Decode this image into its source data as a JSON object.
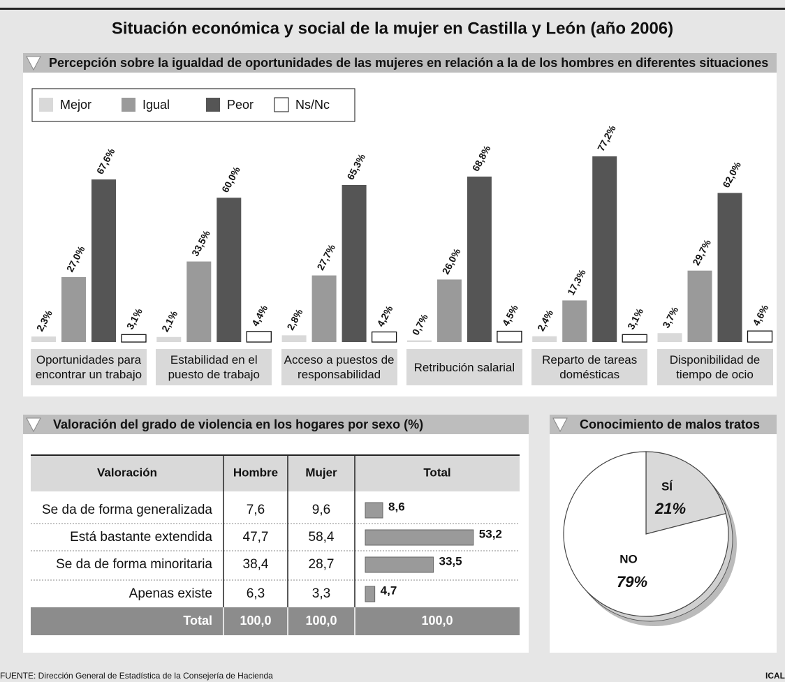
{
  "title": "Situación económica y social de la mujer en Castilla y León (año 2006)",
  "source": "FUENTE: Dirección General de Estadística de la Consejería de Hacienda",
  "credit": "ICAL",
  "chart_data": [
    {
      "type": "bar",
      "title": "Percepción sobre la igualdad de oportunidades de las mujeres en relación a la de los hombres en diferentes situaciones",
      "categories": [
        "Oportunidades para encontrar un trabajo",
        "Estabilidad en el puesto de trabajo",
        "Acceso a puestos de responsabilidad",
        "Retribución salarial",
        "Reparto de tareas domésticas",
        "Disponibilidad de tiempo de ocio"
      ],
      "series": [
        {
          "name": "Mejor",
          "color": "#d9d9d9",
          "values": [
            2.3,
            2.1,
            2.8,
            0.7,
            2.4,
            3.7
          ],
          "value_labels": [
            "2,3%",
            "2,1%",
            "2,8%",
            "0,7%",
            "2,4%",
            "3,7%"
          ]
        },
        {
          "name": "Igual",
          "color": "#9a9a9a",
          "values": [
            27.0,
            33.5,
            27.7,
            26.0,
            17.3,
            29.7
          ],
          "value_labels": [
            "27,0%",
            "33,5%",
            "27,7%",
            "26,0%",
            "17,3%",
            "29,7%"
          ]
        },
        {
          "name": "Peor",
          "color": "#555555",
          "values": [
            67.6,
            60.0,
            65.3,
            68.8,
            77.2,
            62.0
          ],
          "value_labels": [
            "67,6%",
            "60,0%",
            "65,3%",
            "68,8%",
            "77,2%",
            "62,0%"
          ]
        },
        {
          "name": "Ns/Nc",
          "color": "#ffffff",
          "values": [
            3.1,
            4.4,
            4.2,
            4.5,
            3.1,
            4.6
          ],
          "value_labels": [
            "3,1%",
            "4,4%",
            "4,2%",
            "4,5%",
            "3,1%",
            "4,6%"
          ]
        }
      ]
    },
    {
      "type": "table-bar",
      "title": "Valoración del grado de violencia en los hogares por sexo (%)",
      "row_header": "Valoración",
      "categories": [
        "Se da de forma generalizada",
        "Está bastante extendida",
        "Se da de forma minoritaria",
        "Apenas existe"
      ],
      "series": [
        {
          "name": "Hombre",
          "values": [
            7.6,
            47.7,
            38.4,
            6.3
          ],
          "value_labels": [
            "7,6",
            "47,7",
            "38,4",
            "6,3"
          ]
        },
        {
          "name": "Mujer",
          "values": [
            9.6,
            58.4,
            28.7,
            3.3
          ],
          "value_labels": [
            "9,6",
            "58,4",
            "28,7",
            "3,3"
          ]
        },
        {
          "name": "Total",
          "color": "#9a9a9a",
          "values": [
            8.6,
            53.2,
            33.5,
            4.7
          ],
          "value_labels": [
            "8,6",
            "53,2",
            "33,5",
            "4,7"
          ]
        }
      ],
      "total_label": "Total",
      "totals": [
        "100,0",
        "100,0",
        "100,0"
      ]
    },
    {
      "type": "pie",
      "title": "Conocimiento de malos tratos",
      "categories": [
        "SÍ",
        "NO"
      ],
      "values": [
        21,
        79
      ],
      "value_labels": [
        "21%",
        "79%"
      ],
      "colors": [
        "#d9d9d9",
        "#ffffff"
      ]
    }
  ]
}
